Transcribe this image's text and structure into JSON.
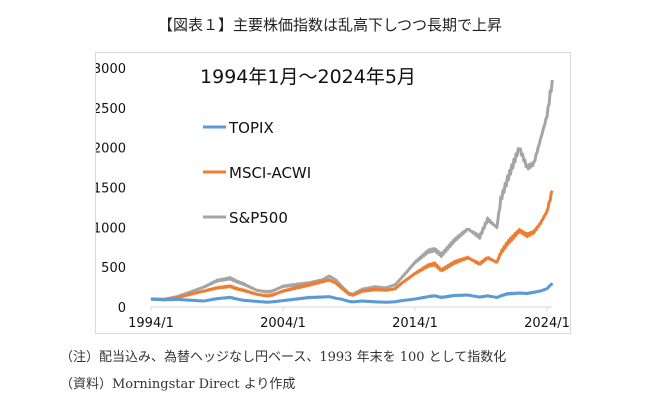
{
  "figure": {
    "title": "【図表１】主要株価指数は乱高下しつつ長期で上昇",
    "note": "（注）配当込み、為替ヘッジなし円ベース、1993 年末を 100 として指数化",
    "source": "（資料）Morningstar Direct より作成"
  },
  "chart_data": {
    "type": "line",
    "title": "1994年1月～2024年5月",
    "xlabel": "",
    "ylabel": "",
    "ylim": [
      0,
      3000
    ],
    "xlim": [
      1994.0,
      2024.4
    ],
    "yticks": [
      0,
      500,
      1000,
      1500,
      2000,
      2500,
      3000
    ],
    "ytick_labels": [
      "0",
      "500",
      "1000",
      "1500",
      "2000",
      "2500",
      "3000"
    ],
    "xticks": [
      1994.0,
      2004.0,
      2014.0,
      2024.0
    ],
    "xtick_labels": [
      "1994/1",
      "2004/1",
      "2014/1",
      "2024/1"
    ],
    "grid": false,
    "legend_position": "top-left",
    "x": [
      1994.0,
      1995.0,
      1996.0,
      1997.0,
      1998.0,
      1999.0,
      2000.0,
      2000.5,
      2001.0,
      2002.0,
      2002.8,
      2003.2,
      2004.0,
      2005.0,
      2006.0,
      2007.0,
      2007.5,
      2008.0,
      2008.5,
      2009.0,
      2009.3,
      2010.0,
      2011.0,
      2011.8,
      2012.5,
      2013.0,
      2014.0,
      2015.0,
      2015.5,
      2016.0,
      2017.0,
      2018.0,
      2018.9,
      2019.5,
      2020.2,
      2020.5,
      2021.0,
      2021.9,
      2022.5,
      2023.0,
      2023.5,
      2024.0,
      2024.4
    ],
    "series": [
      {
        "name": "TOPIX",
        "color": "#5B9BD5",
        "values": [
          100,
          90,
          95,
          85,
          75,
          105,
          120,
          100,
          85,
          70,
          60,
          65,
          80,
          100,
          120,
          125,
          130,
          110,
          95,
          70,
          65,
          75,
          65,
          60,
          65,
          80,
          100,
          130,
          140,
          120,
          145,
          150,
          125,
          140,
          120,
          140,
          165,
          175,
          170,
          185,
          200,
          230,
          300
        ]
      },
      {
        "name": "MSCI-ACWI",
        "color": "#ED7D31",
        "values": [
          100,
          95,
          120,
          160,
          200,
          240,
          260,
          230,
          210,
          160,
          140,
          150,
          200,
          240,
          280,
          320,
          340,
          300,
          230,
          160,
          150,
          200,
          220,
          210,
          230,
          300,
          420,
          520,
          540,
          460,
          560,
          620,
          540,
          620,
          560,
          680,
          800,
          960,
          900,
          940,
          1050,
          1200,
          1460
        ]
      },
      {
        "name": "S&P500",
        "color": "#A5A5A5",
        "values": [
          100,
          95,
          130,
          190,
          250,
          330,
          360,
          320,
          290,
          210,
          190,
          200,
          260,
          280,
          300,
          340,
          390,
          340,
          250,
          170,
          160,
          220,
          250,
          240,
          280,
          370,
          560,
          700,
          720,
          650,
          840,
          980,
          880,
          1100,
          1000,
          1350,
          1600,
          2000,
          1750,
          1800,
          2100,
          2400,
          2850
        ]
      }
    ]
  }
}
